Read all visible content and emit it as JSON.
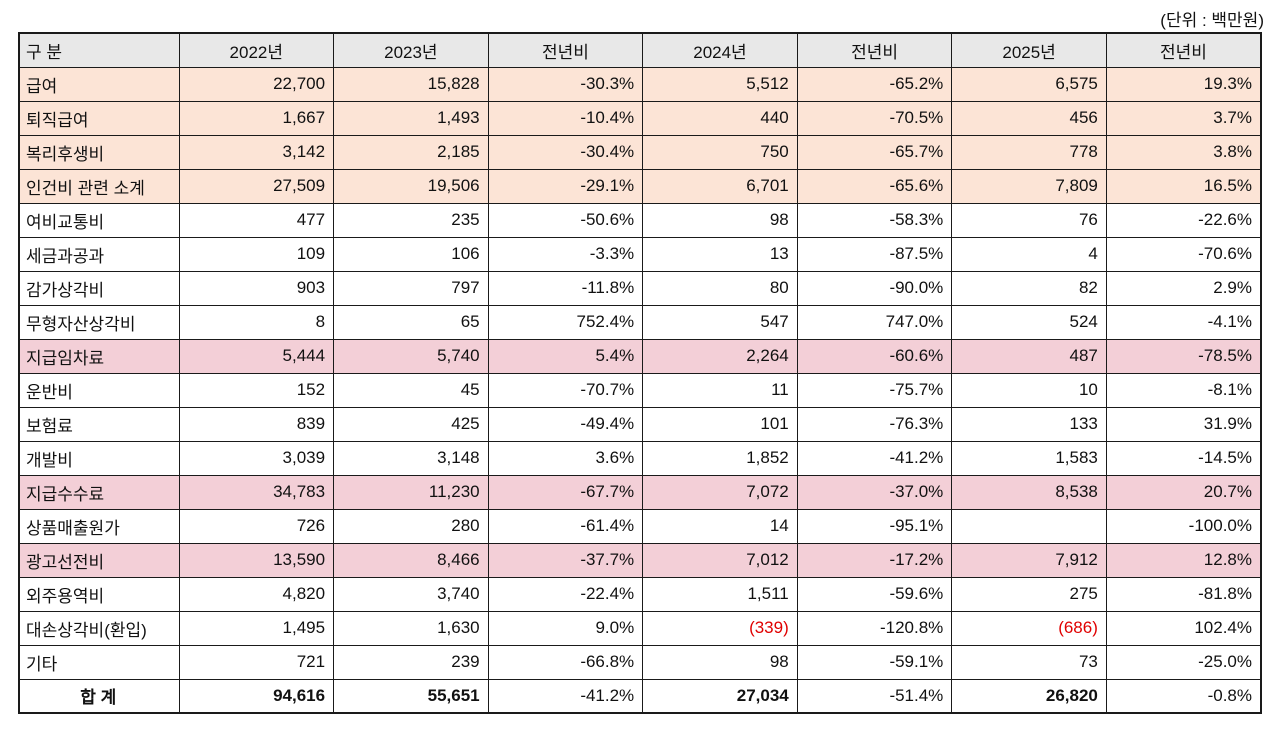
{
  "unit_note": "(단위 : 백만원)",
  "colors": {
    "header_bg": "#e8e8e8",
    "cream_highlight": "#fce4d6",
    "pink_highlight": "#f3cfd7",
    "negative_text": "#e00000",
    "border": "#1a1a1a"
  },
  "table": {
    "headers": [
      "구 분",
      "2022년",
      "2023년",
      "전년비",
      "2024년",
      "전년비",
      "2025년",
      "전년비"
    ],
    "rows": [
      {
        "label": "급여",
        "values": [
          "22,700",
          "15,828",
          "-30.3%",
          "5,512",
          "-65.2%",
          "6,575",
          "19.3%"
        ],
        "highlight": "cream"
      },
      {
        "label": "퇴직급여",
        "values": [
          "1,667",
          "1,493",
          "-10.4%",
          "440",
          "-70.5%",
          "456",
          "3.7%"
        ],
        "highlight": "cream"
      },
      {
        "label": "복리후생비",
        "values": [
          "3,142",
          "2,185",
          "-30.4%",
          "750",
          "-65.7%",
          "778",
          "3.8%"
        ],
        "highlight": "cream"
      },
      {
        "label": "인건비 관련 소계",
        "values": [
          "27,509",
          "19,506",
          "-29.1%",
          "6,701",
          "-65.6%",
          "7,809",
          "16.5%"
        ],
        "highlight": "cream"
      },
      {
        "label": "여비교통비",
        "values": [
          "477",
          "235",
          "-50.6%",
          "98",
          "-58.3%",
          "76",
          "-22.6%"
        ],
        "highlight": null
      },
      {
        "label": "세금과공과",
        "values": [
          "109",
          "106",
          "-3.3%",
          "13",
          "-87.5%",
          "4",
          "-70.6%"
        ],
        "highlight": null
      },
      {
        "label": "감가상각비",
        "values": [
          "903",
          "797",
          "-11.8%",
          "80",
          "-90.0%",
          "82",
          "2.9%"
        ],
        "highlight": null
      },
      {
        "label": "무형자산상각비",
        "values": [
          "8",
          "65",
          "752.4%",
          "547",
          "747.0%",
          "524",
          "-4.1%"
        ],
        "highlight": null
      },
      {
        "label": "지급임차료",
        "values": [
          "5,444",
          "5,740",
          "5.4%",
          "2,264",
          "-60.6%",
          "487",
          "-78.5%"
        ],
        "highlight": "pink"
      },
      {
        "label": "운반비",
        "values": [
          "152",
          "45",
          "-70.7%",
          "11",
          "-75.7%",
          "10",
          "-8.1%"
        ],
        "highlight": null
      },
      {
        "label": "보험료",
        "values": [
          "839",
          "425",
          "-49.4%",
          "101",
          "-76.3%",
          "133",
          "31.9%"
        ],
        "highlight": null
      },
      {
        "label": "개발비",
        "values": [
          "3,039",
          "3,148",
          "3.6%",
          "1,852",
          "-41.2%",
          "1,583",
          "-14.5%"
        ],
        "highlight": null
      },
      {
        "label": "지급수수료",
        "values": [
          "34,783",
          "11,230",
          "-67.7%",
          "7,072",
          "-37.0%",
          "8,538",
          "20.7%"
        ],
        "highlight": "pink"
      },
      {
        "label": "상품매출원가",
        "values": [
          "726",
          "280",
          "-61.4%",
          "14",
          "-95.1%",
          "",
          "-100.0%"
        ],
        "highlight": null
      },
      {
        "label": "광고선전비",
        "values": [
          "13,590",
          "8,466",
          "-37.7%",
          "7,012",
          "-17.2%",
          "7,912",
          "12.8%"
        ],
        "highlight": "pink"
      },
      {
        "label": "외주용역비",
        "values": [
          "4,820",
          "3,740",
          "-22.4%",
          "1,511",
          "-59.6%",
          "275",
          "-81.8%"
        ],
        "highlight": null
      },
      {
        "label": "대손상각비(환입)",
        "values": [
          "1,495",
          "1,630",
          "9.0%",
          "(339)",
          "-120.8%",
          "(686)",
          "102.4%"
        ],
        "highlight": null
      },
      {
        "label": "기타",
        "values": [
          "721",
          "239",
          "-66.8%",
          "98",
          "-59.1%",
          "73",
          "-25.0%"
        ],
        "highlight": null
      }
    ],
    "total": {
      "label": "합 계",
      "values": [
        "94,616",
        "55,651",
        "-41.2%",
        "27,034",
        "-51.4%",
        "26,820",
        "-0.8%"
      ]
    }
  }
}
